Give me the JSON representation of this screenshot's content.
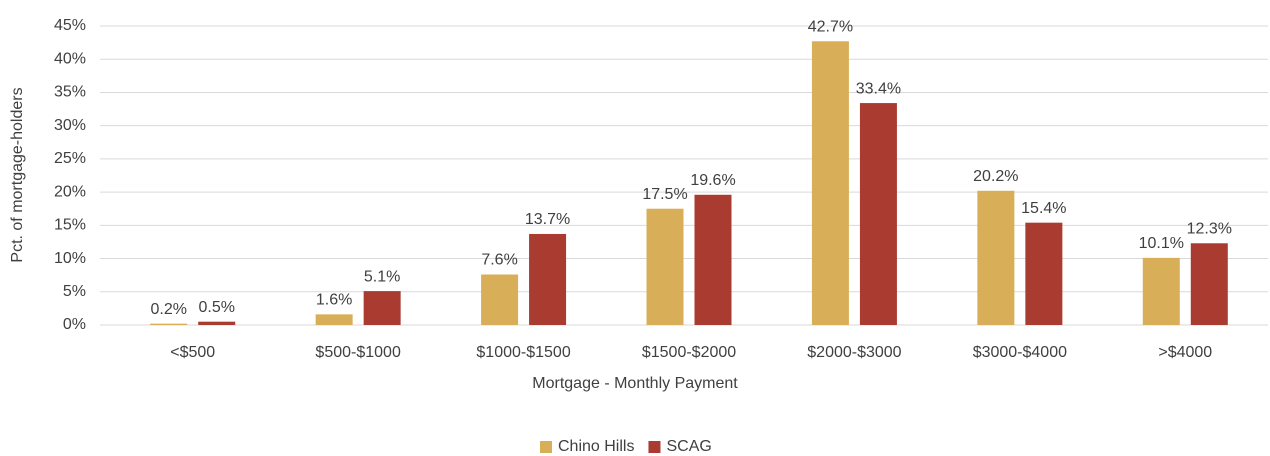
{
  "chart_data": {
    "type": "bar",
    "x_label": "Mortgage - Monthly Payment",
    "y_label": "Pct. of mortgage-holders",
    "categories": [
      "<$500",
      "$500-$1000",
      "$1000-$1500",
      "$1500-$2000",
      "$2000-$3000",
      "$3000-$4000",
      ">$4000"
    ],
    "series": [
      {
        "name": "Chino Hills",
        "color": "#d9ae58",
        "values": [
          0.2,
          1.6,
          7.6,
          17.5,
          42.7,
          20.2,
          10.1
        ],
        "value_labels": [
          "0.2%",
          "1.6%",
          "7.6%",
          "17.5%",
          "42.7%",
          "20.2%",
          "10.1%"
        ]
      },
      {
        "name": "SCAG",
        "color": "#a93b30",
        "values": [
          0.5,
          5.1,
          13.7,
          19.6,
          33.4,
          15.4,
          12.3
        ],
        "value_labels": [
          "0.5%",
          "5.1%",
          "13.7%",
          "19.6%",
          "33.4%",
          "15.4%",
          "12.3%"
        ]
      }
    ],
    "ylim": [
      0,
      45
    ],
    "yticks": [
      {
        "value": 0,
        "label": "0%"
      },
      {
        "value": 5,
        "label": "5%"
      },
      {
        "value": 10,
        "label": "10%"
      },
      {
        "value": 15,
        "label": "15%"
      },
      {
        "value": 20,
        "label": "20%"
      },
      {
        "value": 25,
        "label": "25%"
      },
      {
        "value": 30,
        "label": "30%"
      },
      {
        "value": 35,
        "label": "35%"
      },
      {
        "value": 40,
        "label": "40%"
      },
      {
        "value": 45,
        "label": "45%"
      }
    ],
    "grid": true,
    "legend": "bottom"
  }
}
